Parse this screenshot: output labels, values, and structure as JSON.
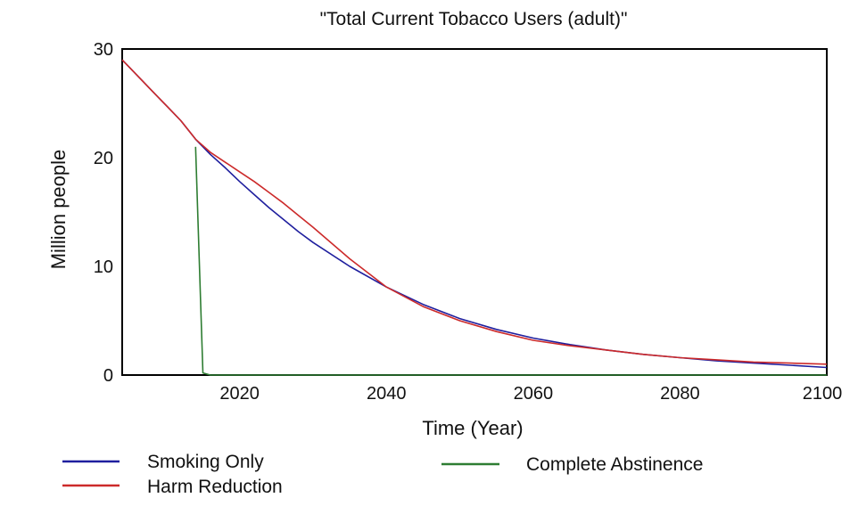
{
  "chart_data": {
    "type": "line",
    "title": "\"Total Current Tobacco Users (adult)\"",
    "xlabel": "Time (Year)",
    "ylabel": "Million people",
    "xlim": [
      2004,
      2100
    ],
    "ylim": [
      0,
      30
    ],
    "x_ticks": [
      2020,
      2040,
      2060,
      2080,
      2100
    ],
    "y_ticks": [
      0,
      10,
      20,
      30
    ],
    "grid": false,
    "legend_position": "bottom",
    "series": [
      {
        "name": "Smoking Only",
        "color": "#1f1f9e",
        "x": [
          2004,
          2006,
          2008,
          2010,
          2012,
          2014,
          2016,
          2018,
          2020,
          2022,
          2024,
          2026,
          2028,
          2030,
          2035,
          2040,
          2045,
          2050,
          2055,
          2060,
          2065,
          2070,
          2075,
          2080,
          2085,
          2090,
          2095,
          2100
        ],
        "values": [
          29.0,
          27.6,
          26.2,
          24.8,
          23.4,
          21.7,
          20.3,
          19.1,
          17.8,
          16.6,
          15.4,
          14.3,
          13.2,
          12.2,
          10.0,
          8.1,
          6.5,
          5.2,
          4.2,
          3.4,
          2.8,
          2.3,
          1.9,
          1.6,
          1.3,
          1.1,
          0.9,
          0.7
        ]
      },
      {
        "name": "Harm Reduction",
        "color": "#cc2a2a",
        "x": [
          2004,
          2006,
          2008,
          2010,
          2012,
          2014,
          2016,
          2018,
          2020,
          2022,
          2024,
          2026,
          2028,
          2030,
          2035,
          2040,
          2045,
          2050,
          2055,
          2060,
          2065,
          2070,
          2075,
          2080,
          2085,
          2090,
          2095,
          2100
        ],
        "values": [
          29.0,
          27.6,
          26.2,
          24.8,
          23.4,
          21.7,
          20.5,
          19.6,
          18.7,
          17.8,
          16.8,
          15.8,
          14.7,
          13.6,
          10.7,
          8.1,
          6.3,
          5.0,
          4.0,
          3.2,
          2.7,
          2.3,
          1.9,
          1.6,
          1.4,
          1.2,
          1.1,
          1.0
        ]
      },
      {
        "name": "Complete Abstinence",
        "color": "#2e7d32",
        "x": [
          2014,
          2015,
          2016,
          2020,
          2040,
          2060,
          2080,
          2100
        ],
        "values": [
          21.0,
          0.2,
          0.0,
          0.0,
          0.0,
          0.0,
          0.0,
          0.0
        ]
      }
    ]
  }
}
